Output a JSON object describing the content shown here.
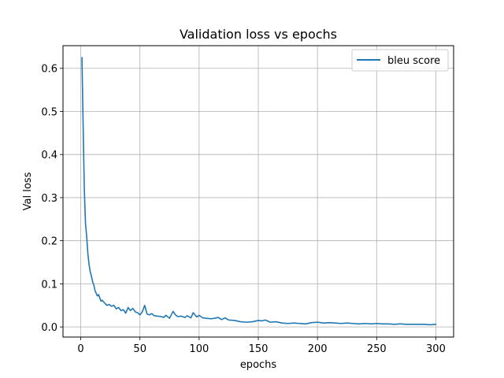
{
  "chart_data": {
    "type": "line",
    "title": "Validation loss vs epochs",
    "xlabel": "epochs",
    "ylabel": "Val loss",
    "xlim": [
      -15,
      315
    ],
    "ylim": [
      -0.0235,
      0.6525
    ],
    "xticks": [
      0,
      50,
      100,
      150,
      200,
      250,
      300
    ],
    "yticks": [
      0.0,
      0.1,
      0.2,
      0.3,
      0.4,
      0.5,
      0.6
    ],
    "xtick_labels": [
      "0",
      "50",
      "100",
      "150",
      "200",
      "250",
      "300"
    ],
    "ytick_labels": [
      "0.0",
      "0.1",
      "0.2",
      "0.3",
      "0.4",
      "0.5",
      "0.6"
    ],
    "grid": true,
    "legend_position": "top-right",
    "series": [
      {
        "name": "bleu score",
        "color": "#1f77b4",
        "x": [
          1,
          2,
          3,
          4,
          5,
          6,
          7,
          8,
          9,
          10,
          11,
          12,
          13,
          14,
          15,
          16,
          17,
          18,
          20,
          22,
          24,
          26,
          28,
          30,
          32,
          34,
          36,
          38,
          40,
          42,
          44,
          46,
          48,
          50,
          52,
          54,
          56,
          58,
          60,
          62,
          65,
          68,
          70,
          72,
          75,
          78,
          80,
          82,
          85,
          88,
          90,
          93,
          95,
          98,
          100,
          103,
          106,
          110,
          113,
          116,
          119,
          122,
          125,
          130,
          135,
          140,
          145,
          150,
          153,
          156,
          160,
          165,
          170,
          175,
          180,
          185,
          190,
          195,
          200,
          205,
          210,
          215,
          220,
          225,
          230,
          235,
          240,
          245,
          250,
          255,
          260,
          265,
          270,
          275,
          280,
          285,
          290,
          295,
          300
        ],
        "y": [
          0.625,
          0.47,
          0.32,
          0.24,
          0.21,
          0.17,
          0.145,
          0.128,
          0.118,
          0.105,
          0.098,
          0.085,
          0.078,
          0.072,
          0.075,
          0.068,
          0.06,
          0.062,
          0.056,
          0.05,
          0.052,
          0.048,
          0.05,
          0.042,
          0.045,
          0.038,
          0.04,
          0.032,
          0.045,
          0.038,
          0.043,
          0.035,
          0.033,
          0.028,
          0.035,
          0.05,
          0.03,
          0.028,
          0.031,
          0.026,
          0.025,
          0.024,
          0.022,
          0.027,
          0.02,
          0.036,
          0.028,
          0.024,
          0.025,
          0.022,
          0.026,
          0.021,
          0.033,
          0.023,
          0.027,
          0.021,
          0.02,
          0.019,
          0.02,
          0.022,
          0.017,
          0.021,
          0.016,
          0.015,
          0.012,
          0.011,
          0.012,
          0.015,
          0.014,
          0.016,
          0.011,
          0.012,
          0.009,
          0.008,
          0.009,
          0.008,
          0.007,
          0.01,
          0.011,
          0.009,
          0.01,
          0.009,
          0.008,
          0.009,
          0.008,
          0.007,
          0.008,
          0.007,
          0.008,
          0.007,
          0.007,
          0.006,
          0.007,
          0.006,
          0.006,
          0.006,
          0.006,
          0.005,
          0.006
        ]
      }
    ]
  }
}
